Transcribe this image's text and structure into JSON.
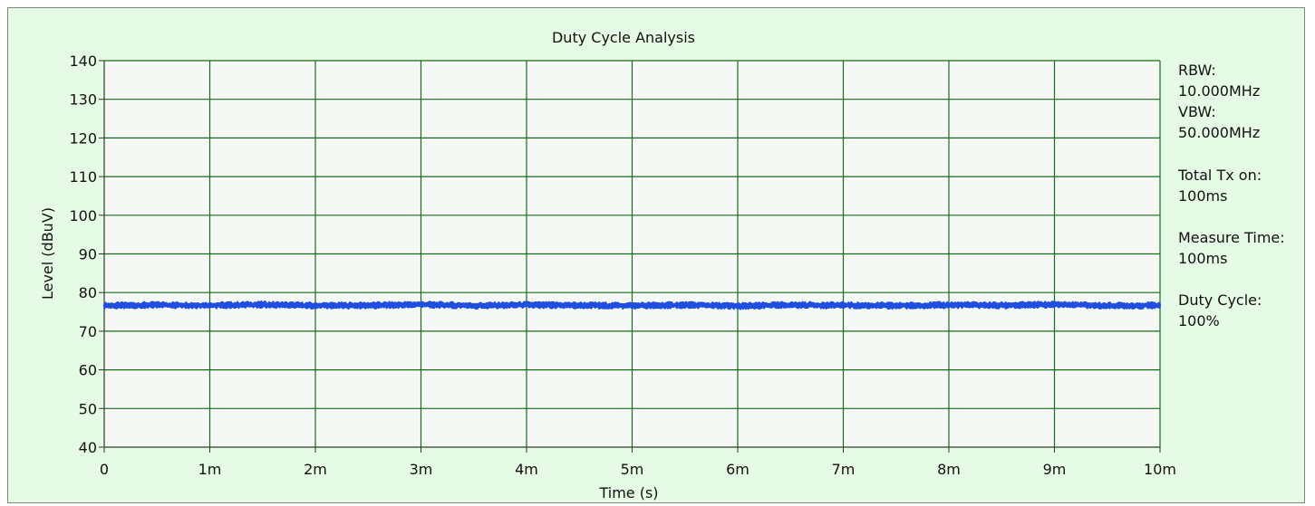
{
  "chart_data": {
    "type": "line",
    "title": "Duty Cycle Analysis",
    "xlabel": "Time (s)",
    "ylabel": "Level (dBuV)",
    "xlim": [
      0,
      0.01
    ],
    "ylim": [
      40,
      140
    ],
    "x_ticks": [
      {
        "value": 0,
        "label": "0"
      },
      {
        "value": 0.001,
        "label": "1m"
      },
      {
        "value": 0.002,
        "label": "2m"
      },
      {
        "value": 0.003,
        "label": "3m"
      },
      {
        "value": 0.004,
        "label": "4m"
      },
      {
        "value": 0.005,
        "label": "5m"
      },
      {
        "value": 0.006,
        "label": "6m"
      },
      {
        "value": 0.007,
        "label": "7m"
      },
      {
        "value": 0.008,
        "label": "8m"
      },
      {
        "value": 0.009,
        "label": "9m"
      },
      {
        "value": 0.01,
        "label": "10m"
      }
    ],
    "y_ticks": [
      40,
      50,
      60,
      70,
      80,
      90,
      100,
      110,
      120,
      130,
      140
    ],
    "grid": true,
    "series": [
      {
        "color": "#1f4fe0",
        "x": [
          0,
          0.0005,
          0.001,
          0.0015,
          0.002,
          0.0025,
          0.003,
          0.0035,
          0.004,
          0.0045,
          0.005,
          0.0055,
          0.006,
          0.0065,
          0.007,
          0.0075,
          0.008,
          0.0085,
          0.009,
          0.0095,
          0.01
        ],
        "y": [
          76.6,
          76.8,
          76.7,
          76.9,
          76.6,
          76.7,
          76.9,
          76.6,
          76.8,
          76.7,
          76.6,
          76.8,
          76.5,
          76.8,
          76.7,
          76.6,
          76.8,
          76.7,
          76.9,
          76.6,
          76.7
        ],
        "band": 1.2
      }
    ]
  },
  "info": {
    "rbw_label": "RBW:",
    "rbw_value": "10.000MHz",
    "vbw_label": "VBW:",
    "vbw_value": "50.000MHz",
    "tx_label": "Total Tx on:",
    "tx_value": "100ms",
    "measure_label": "Measure Time:",
    "measure_value": "100ms",
    "duty_label": "Duty Cycle:",
    "duty_value": "100%"
  },
  "colors": {
    "plot_bg": "#f6f8f6",
    "grid": "#1a6b1a",
    "trace": "#1f4fe0",
    "panel_bg": "#e6fbe6"
  }
}
